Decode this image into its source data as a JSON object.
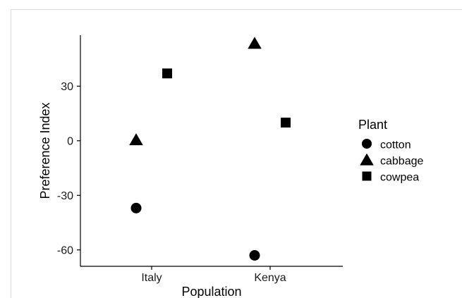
{
  "chart_data": {
    "type": "scatter",
    "title": "",
    "xlabel": "Population",
    "ylabel": "Preference Index",
    "categories": [
      "Italy",
      "Kenya"
    ],
    "ylim": [
      -69,
      58
    ],
    "yticks": [
      -60,
      -30,
      0,
      30
    ],
    "ytick_labels": [
      "-60",
      "-30",
      "0",
      "30"
    ],
    "grid": false,
    "legend": {
      "title": "Plant",
      "position": "right",
      "entries": [
        {
          "name": "cotton",
          "shape": "circle"
        },
        {
          "name": "cabbage",
          "shape": "triangle"
        },
        {
          "name": "cowpea",
          "shape": "square"
        }
      ]
    },
    "series": [
      {
        "name": "cotton",
        "shape": "circle",
        "points": [
          {
            "x": "Italy",
            "y": -37
          },
          {
            "x": "Kenya",
            "y": -63
          }
        ]
      },
      {
        "name": "cabbage",
        "shape": "triangle",
        "points": [
          {
            "x": "Italy",
            "y": 0.5
          },
          {
            "x": "Kenya",
            "y": 53.5
          }
        ]
      },
      {
        "name": "cowpea",
        "shape": "square",
        "points": [
          {
            "x": "Italy",
            "y": 37
          },
          {
            "x": "Kenya",
            "y": 10
          }
        ]
      }
    ],
    "colors": {
      "marker": "#000000",
      "axis": "#000000"
    }
  }
}
